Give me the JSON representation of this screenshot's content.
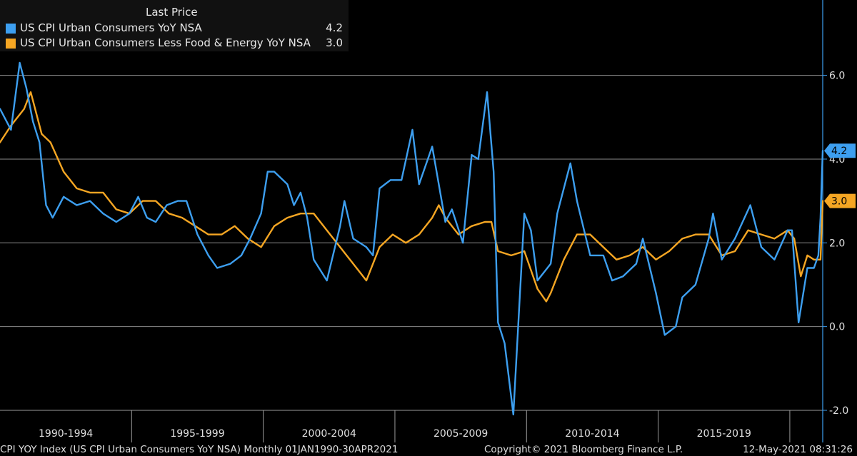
{
  "chart_data": {
    "type": "line",
    "legend_header": "Last Price",
    "legend_position": "top-left",
    "grid": "horizontal",
    "x_range": [
      "1990-01",
      "2021-04"
    ],
    "ylim": [
      -2.0,
      7.8
    ],
    "y_ticks": [
      "-2.0",
      "0.0",
      "2.0",
      "4.0",
      "6.0"
    ],
    "x_period_labels": [
      "1990-1994",
      "1995-1999",
      "2000-2004",
      "2005-2009",
      "2010-2014",
      "2015-2019"
    ],
    "series": [
      {
        "name": "US CPI Urban Consumers YoY NSA",
        "last_value": "4.2",
        "color": "#3d9ff0",
        "points": [
          [
            "1990-01",
            5.2
          ],
          [
            "1990-06",
            4.7
          ],
          [
            "1990-10",
            6.3
          ],
          [
            "1991-01",
            5.7
          ],
          [
            "1991-04",
            4.9
          ],
          [
            "1991-07",
            4.4
          ],
          [
            "1991-10",
            2.9
          ],
          [
            "1992-01",
            2.6
          ],
          [
            "1992-06",
            3.1
          ],
          [
            "1992-12",
            2.9
          ],
          [
            "1993-06",
            3.0
          ],
          [
            "1993-12",
            2.7
          ],
          [
            "1994-06",
            2.5
          ],
          [
            "1994-12",
            2.7
          ],
          [
            "1995-04",
            3.1
          ],
          [
            "1995-08",
            2.6
          ],
          [
            "1995-12",
            2.5
          ],
          [
            "1996-05",
            2.9
          ],
          [
            "1996-10",
            3.0
          ],
          [
            "1997-02",
            3.0
          ],
          [
            "1997-07",
            2.2
          ],
          [
            "1997-12",
            1.7
          ],
          [
            "1998-04",
            1.4
          ],
          [
            "1998-10",
            1.5
          ],
          [
            "1999-03",
            1.7
          ],
          [
            "1999-07",
            2.1
          ],
          [
            "1999-12",
            2.7
          ],
          [
            "2000-03",
            3.7
          ],
          [
            "2000-06",
            3.7
          ],
          [
            "2000-12",
            3.4
          ],
          [
            "2001-03",
            2.9
          ],
          [
            "2001-06",
            3.2
          ],
          [
            "2001-09",
            2.6
          ],
          [
            "2001-12",
            1.6
          ],
          [
            "2002-06",
            1.1
          ],
          [
            "2002-12",
            2.4
          ],
          [
            "2003-02",
            3.0
          ],
          [
            "2003-06",
            2.1
          ],
          [
            "2003-12",
            1.9
          ],
          [
            "2004-03",
            1.7
          ],
          [
            "2004-06",
            3.3
          ],
          [
            "2004-11",
            3.5
          ],
          [
            "2005-04",
            3.5
          ],
          [
            "2005-09",
            4.7
          ],
          [
            "2005-12",
            3.4
          ],
          [
            "2006-06",
            4.3
          ],
          [
            "2006-12",
            2.5
          ],
          [
            "2007-03",
            2.8
          ],
          [
            "2007-08",
            2.0
          ],
          [
            "2007-12",
            4.1
          ],
          [
            "2008-03",
            4.0
          ],
          [
            "2008-07",
            5.6
          ],
          [
            "2008-10",
            3.7
          ],
          [
            "2008-12",
            0.1
          ],
          [
            "2009-03",
            -0.4
          ],
          [
            "2009-07",
            -2.1
          ],
          [
            "2009-12",
            2.7
          ],
          [
            "2010-03",
            2.3
          ],
          [
            "2010-06",
            1.1
          ],
          [
            "2010-12",
            1.5
          ],
          [
            "2011-03",
            2.7
          ],
          [
            "2011-09",
            3.9
          ],
          [
            "2011-12",
            3.0
          ],
          [
            "2012-06",
            1.7
          ],
          [
            "2012-12",
            1.7
          ],
          [
            "2013-04",
            1.1
          ],
          [
            "2013-09",
            1.2
          ],
          [
            "2014-03",
            1.5
          ],
          [
            "2014-06",
            2.1
          ],
          [
            "2014-12",
            0.8
          ],
          [
            "2015-04",
            -0.2
          ],
          [
            "2015-09",
            0.0
          ],
          [
            "2015-12",
            0.7
          ],
          [
            "2016-06",
            1.0
          ],
          [
            "2016-12",
            2.1
          ],
          [
            "2017-02",
            2.7
          ],
          [
            "2017-06",
            1.6
          ],
          [
            "2017-12",
            2.1
          ],
          [
            "2018-07",
            2.9
          ],
          [
            "2018-12",
            1.9
          ],
          [
            "2019-06",
            1.6
          ],
          [
            "2019-12",
            2.3
          ],
          [
            "2020-02",
            2.3
          ],
          [
            "2020-05",
            0.1
          ],
          [
            "2020-09",
            1.4
          ],
          [
            "2020-12",
            1.4
          ],
          [
            "2021-02",
            1.7
          ],
          [
            "2021-03",
            2.6
          ],
          [
            "2021-04",
            4.2
          ]
        ]
      },
      {
        "name": "US CPI Urban Consumers Less Food & Energy YoY NSA",
        "last_value": "3.0",
        "color": "#f5a623",
        "points": [
          [
            "1990-01",
            4.4
          ],
          [
            "1990-06",
            4.8
          ],
          [
            "1990-12",
            5.2
          ],
          [
            "1991-03",
            5.6
          ],
          [
            "1991-08",
            4.6
          ],
          [
            "1991-12",
            4.4
          ],
          [
            "1992-06",
            3.7
          ],
          [
            "1992-12",
            3.3
          ],
          [
            "1993-06",
            3.2
          ],
          [
            "1993-12",
            3.2
          ],
          [
            "1994-06",
            2.8
          ],
          [
            "1994-12",
            2.7
          ],
          [
            "1995-06",
            3.0
          ],
          [
            "1995-12",
            3.0
          ],
          [
            "1996-06",
            2.7
          ],
          [
            "1996-12",
            2.6
          ],
          [
            "1997-06",
            2.4
          ],
          [
            "1997-12",
            2.2
          ],
          [
            "1998-06",
            2.2
          ],
          [
            "1998-12",
            2.4
          ],
          [
            "1999-06",
            2.1
          ],
          [
            "1999-12",
            1.9
          ],
          [
            "2000-06",
            2.4
          ],
          [
            "2000-12",
            2.6
          ],
          [
            "2001-06",
            2.7
          ],
          [
            "2001-12",
            2.7
          ],
          [
            "2002-06",
            2.3
          ],
          [
            "2002-12",
            1.9
          ],
          [
            "2003-06",
            1.5
          ],
          [
            "2003-12",
            1.1
          ],
          [
            "2004-06",
            1.9
          ],
          [
            "2004-12",
            2.2
          ],
          [
            "2005-06",
            2.0
          ],
          [
            "2005-12",
            2.2
          ],
          [
            "2006-06",
            2.6
          ],
          [
            "2006-09",
            2.9
          ],
          [
            "2006-12",
            2.6
          ],
          [
            "2007-06",
            2.2
          ],
          [
            "2007-12",
            2.4
          ],
          [
            "2008-06",
            2.5
          ],
          [
            "2008-09",
            2.5
          ],
          [
            "2008-12",
            1.8
          ],
          [
            "2009-06",
            1.7
          ],
          [
            "2009-12",
            1.8
          ],
          [
            "2010-06",
            0.9
          ],
          [
            "2010-10",
            0.6
          ],
          [
            "2010-12",
            0.8
          ],
          [
            "2011-06",
            1.6
          ],
          [
            "2011-12",
            2.2
          ],
          [
            "2012-06",
            2.2
          ],
          [
            "2012-12",
            1.9
          ],
          [
            "2013-06",
            1.6
          ],
          [
            "2013-12",
            1.7
          ],
          [
            "2014-06",
            1.9
          ],
          [
            "2014-12",
            1.6
          ],
          [
            "2015-06",
            1.8
          ],
          [
            "2015-12",
            2.1
          ],
          [
            "2016-06",
            2.2
          ],
          [
            "2016-12",
            2.2
          ],
          [
            "2017-06",
            1.7
          ],
          [
            "2017-12",
            1.8
          ],
          [
            "2018-06",
            2.3
          ],
          [
            "2018-12",
            2.2
          ],
          [
            "2019-06",
            2.1
          ],
          [
            "2019-12",
            2.3
          ],
          [
            "2020-03",
            2.1
          ],
          [
            "2020-06",
            1.2
          ],
          [
            "2020-09",
            1.7
          ],
          [
            "2020-12",
            1.6
          ],
          [
            "2021-03",
            1.6
          ],
          [
            "2021-04",
            3.0
          ]
        ]
      }
    ]
  },
  "footer": {
    "left": "CPI YOY Index (US CPI Urban Consumers YoY NSA)  Monthly 01JAN1990-30APR2021",
    "center": "Copyright© 2021 Bloomberg Finance L.P.",
    "right": "12-May-2021 08:31:26"
  }
}
